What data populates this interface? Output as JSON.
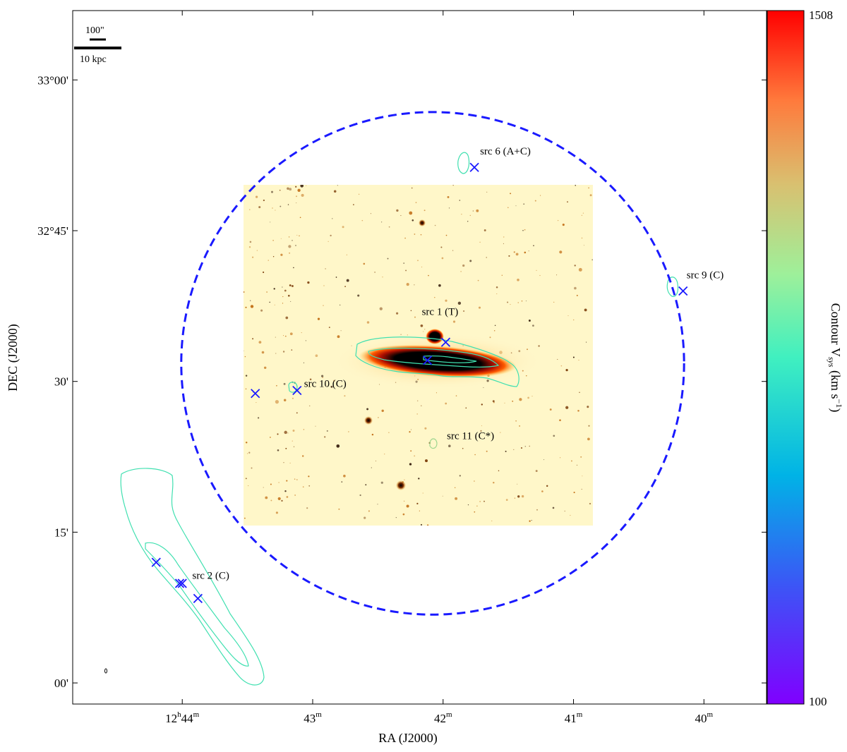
{
  "chart_data": {
    "type": "scatter",
    "title": "",
    "xlabel": "RA (J2000)",
    "ylabel": "DEC (J2000)",
    "x_ticks": [
      {
        "label_h": "12",
        "label_sup_h": "h",
        "label_m": "44",
        "label_sup_m": "m",
        "value_deg": 191.0
      },
      {
        "label_h": "",
        "label_sup_h": "",
        "label_m": "43",
        "label_sup_m": "m",
        "value_deg": 190.75
      },
      {
        "label_h": "",
        "label_sup_h": "",
        "label_m": "42",
        "label_sup_m": "m",
        "value_deg": 190.5
      },
      {
        "label_h": "",
        "label_sup_h": "",
        "label_m": "41",
        "label_sup_m": "m",
        "value_deg": 190.25
      },
      {
        "label_h": "",
        "label_sup_h": "",
        "label_m": "40",
        "label_sup_m": "m",
        "value_deg": 190.0
      }
    ],
    "y_ticks": [
      {
        "label": "33°00'",
        "value_deg": 33.0
      },
      {
        "label": "32°45'",
        "value_deg": 32.75
      },
      {
        "label": "30'",
        "value_deg": 32.5
      },
      {
        "label": "15'",
        "value_deg": 32.25
      },
      {
        "label": "00'",
        "value_deg": 32.0
      }
    ],
    "xlim_deg": [
      191.21,
      189.88
    ],
    "ylim_deg": [
      31.965,
      33.115
    ],
    "colorbar": {
      "label": "Contour V",
      "label_sub": "sys",
      "label_unit": " (km s",
      "label_exp": "−1",
      "label_close": ")",
      "vmin_label": "100",
      "vmax_label": "1508",
      "vmin": 100,
      "vmax": 1508,
      "colormap": "rainbow"
    },
    "primary_beam": {
      "center_ra": 190.52,
      "center_dec": 32.53,
      "radius_deg": 0.4167,
      "color": "#1a1aff",
      "style": "dashed"
    },
    "scale_bar": {
      "angular_label": "100\"",
      "physical_label": "10 kpc"
    },
    "sources": [
      {
        "name": "src 1 (T)",
        "ra": 190.53,
        "dec": 32.54,
        "velocity": 660
      },
      {
        "name": "src 2 (C)",
        "ra": 190.97,
        "dec": 32.14,
        "velocity": 620
      },
      {
        "name": "src 6 (A+C)",
        "ra": 190.44,
        "dec": 32.855,
        "velocity": 640
      },
      {
        "name": "src 9 (C)",
        "ra": 190.04,
        "dec": 32.65,
        "velocity": 760
      },
      {
        "name": "src 10 (C)",
        "ra": 190.78,
        "dec": 32.485,
        "velocity": 780
      },
      {
        "name": "src 11 (C*)",
        "ra": 190.49,
        "dec": 32.395,
        "velocity": 790
      }
    ],
    "markers": [
      {
        "ra": 190.86,
        "dec": 32.48
      },
      {
        "ra": 190.78,
        "dec": 32.485
      },
      {
        "ra": 190.44,
        "dec": 32.855
      },
      {
        "ra": 190.04,
        "dec": 32.65
      },
      {
        "ra": 190.495,
        "dec": 32.565
      },
      {
        "ra": 190.53,
        "dec": 32.535
      },
      {
        "ra": 191.05,
        "dec": 32.2
      },
      {
        "ra": 191.005,
        "dec": 32.165
      },
      {
        "ra": 191.0,
        "dec": 32.165
      },
      {
        "ra": 190.97,
        "dec": 32.14
      }
    ],
    "marker_color": "#1a1aff",
    "contour_color": "#40e0b0",
    "optical_colormap": "heat (yellow-red-black)"
  }
}
